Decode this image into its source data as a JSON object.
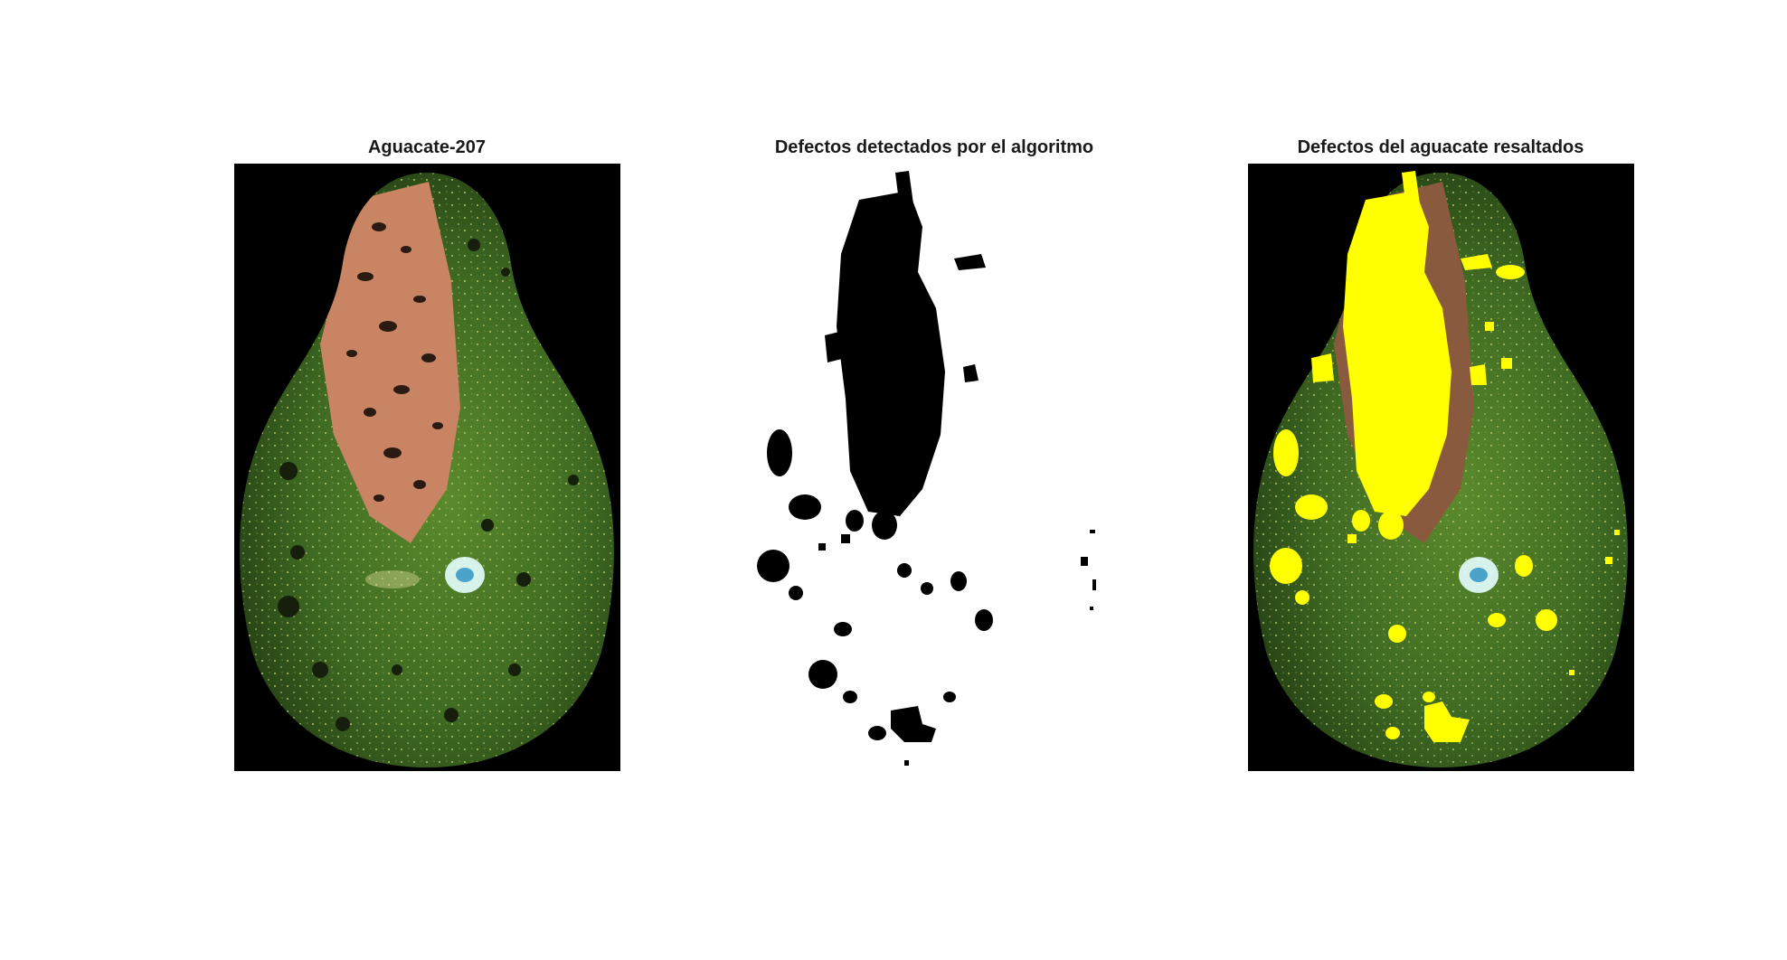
{
  "figure": {
    "panels": [
      {
        "id": "original",
        "title": "Aguacate-207"
      },
      {
        "id": "mask",
        "title": "Defectos detectados por el algoritmo"
      },
      {
        "id": "overlay",
        "title": "Defectos del aguacate resaltados"
      }
    ],
    "colors": {
      "background": "#000000",
      "skin_green": "#3f6a22",
      "skin_dark": "#233f14",
      "defect_brown": "#c98563",
      "defect_dark": "#2a1a12",
      "mask_defect": "#000000",
      "highlight_yellow": "#ffff00",
      "specular": "#e6ffff"
    }
  }
}
